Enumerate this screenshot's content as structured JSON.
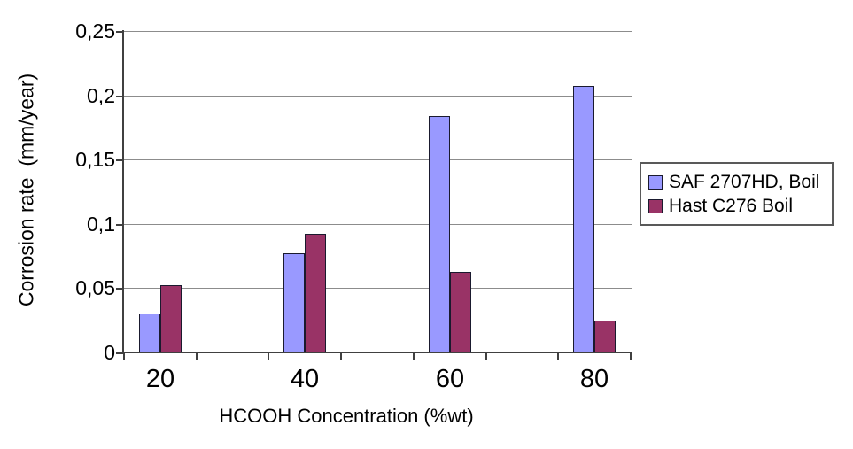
{
  "chart_data": {
    "type": "bar",
    "title": "",
    "xlabel": "HCOOH Concentration (%wt)",
    "ylabel": "Corrosion rate  (mm/year)",
    "categories": [
      "20",
      "40",
      "60",
      "80"
    ],
    "series": [
      {
        "name": "SAF 2707HD, Boil",
        "color": "#9999ff",
        "values": [
          0.03,
          0.077,
          0.184,
          0.207
        ]
      },
      {
        "name": "Hast C276 Boil",
        "color": "#993366",
        "values": [
          0.052,
          0.092,
          0.063,
          0.025
        ]
      }
    ],
    "ylim": [
      0,
      0.25
    ],
    "ytick_step": 0.05,
    "ytick_labels": [
      "0",
      "0,05",
      "0,1",
      "0,15",
      "0,2",
      "0,25"
    ],
    "decimal_separator": ",",
    "grid": "horizontal",
    "legend_position": "right",
    "plot_background": "#ffffff"
  }
}
